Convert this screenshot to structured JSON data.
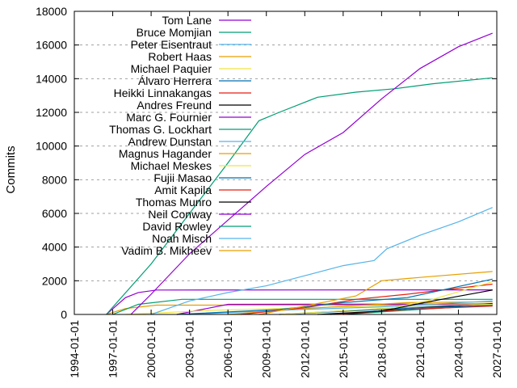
{
  "chart_data": {
    "type": "line",
    "title": "",
    "xlabel": "",
    "ylabel": "Commits",
    "ylim": [
      0,
      18000
    ],
    "xlim": [
      "1994-01-01",
      "2027-01-01"
    ],
    "yticks": [
      0,
      2000,
      4000,
      6000,
      8000,
      10000,
      12000,
      14000,
      16000,
      18000
    ],
    "xticks": [
      "1994-01-01",
      "1997-01-01",
      "2000-01-01",
      "2003-01-01",
      "2006-01-01",
      "2009-01-01",
      "2012-01-01",
      "2015-01-01",
      "2018-01-01",
      "2021-01-01",
      "2024-01-01",
      "2027-01-01"
    ],
    "grid": "y-dashed",
    "legend": "top-left",
    "series": [
      {
        "name": "Tom Lane",
        "color": "#9400d3",
        "points": [
          [
            "1998-06-01",
            0
          ],
          [
            "2000-01-01",
            1200
          ],
          [
            "2003-01-01",
            3600
          ],
          [
            "2006-01-01",
            5600
          ],
          [
            "2009-01-01",
            7600
          ],
          [
            "2012-01-01",
            9500
          ],
          [
            "2015-01-01",
            10800
          ],
          [
            "2018-01-01",
            12800
          ],
          [
            "2021-01-01",
            14600
          ],
          [
            "2024-01-01",
            15900
          ],
          [
            "2026-09-01",
            16700
          ]
        ]
      },
      {
        "name": "Bruce Momjian",
        "color": "#009e73",
        "points": [
          [
            "1996-07-01",
            0
          ],
          [
            "2000-01-01",
            3000
          ],
          [
            "2003-01-01",
            6000
          ],
          [
            "2006-01-01",
            9000
          ],
          [
            "2008-06-01",
            11500
          ],
          [
            "2010-01-01",
            12000
          ],
          [
            "2013-01-01",
            12900
          ],
          [
            "2016-01-01",
            13200
          ],
          [
            "2019-01-01",
            13400
          ],
          [
            "2022-01-01",
            13700
          ],
          [
            "2026-09-01",
            14050
          ]
        ]
      },
      {
        "name": "Peter Eisentraut",
        "color": "#56b4e9",
        "points": [
          [
            "2000-01-01",
            0
          ],
          [
            "2003-01-01",
            800
          ],
          [
            "2006-01-01",
            1300
          ],
          [
            "2009-01-01",
            1700
          ],
          [
            "2012-01-01",
            2300
          ],
          [
            "2015-01-01",
            2900
          ],
          [
            "2017-06-01",
            3200
          ],
          [
            "2018-06-01",
            3900
          ],
          [
            "2021-01-01",
            4700
          ],
          [
            "2024-01-01",
            5500
          ],
          [
            "2026-09-01",
            6350
          ]
        ]
      },
      {
        "name": "Robert Haas",
        "color": "#e69f00",
        "points": [
          [
            "2008-06-01",
            0
          ],
          [
            "2012-01-01",
            500
          ],
          [
            "2016-01-01",
            1100
          ],
          [
            "2018-01-01",
            2000
          ],
          [
            "2021-01-01",
            2200
          ],
          [
            "2026-09-01",
            2550
          ]
        ]
      },
      {
        "name": "Michael Paquier",
        "color": "#f0e442",
        "points": [
          [
            "2010-01-01",
            0
          ],
          [
            "2019-01-01",
            400
          ],
          [
            "2022-01-01",
            900
          ],
          [
            "2026-09-01",
            1950
          ]
        ]
      },
      {
        "name": "Álvaro Herrera",
        "color": "#0072b2",
        "points": [
          [
            "2002-01-01",
            0
          ],
          [
            "2010-01-01",
            300
          ],
          [
            "2015-01-01",
            700
          ],
          [
            "2020-01-01",
            1000
          ],
          [
            "2026-09-01",
            2100
          ]
        ]
      },
      {
        "name": "Heikki Linnakangas",
        "color": "#e51e10",
        "points": [
          [
            "2007-01-01",
            0
          ],
          [
            "2012-01-01",
            400
          ],
          [
            "2016-01-01",
            900
          ],
          [
            "2020-01-01",
            1200
          ],
          [
            "2026-09-01",
            1800
          ]
        ]
      },
      {
        "name": "Andres Freund",
        "color": "#000000",
        "points": [
          [
            "2013-01-01",
            0
          ],
          [
            "2018-01-01",
            200
          ],
          [
            "2022-01-01",
            800
          ],
          [
            "2026-09-01",
            1450
          ]
        ]
      },
      {
        "name": "Marc G. Fournier",
        "color": "#9400d3",
        "points": [
          [
            "1996-07-01",
            0
          ],
          [
            "1998-01-01",
            1000
          ],
          [
            "1999-01-01",
            1300
          ],
          [
            "2000-06-01",
            1450
          ],
          [
            "2026-09-01",
            1460
          ]
        ]
      },
      {
        "name": "Thomas G. Lockhart",
        "color": "#009e73",
        "points": [
          [
            "1997-01-01",
            0
          ],
          [
            "1999-01-01",
            600
          ],
          [
            "2002-06-01",
            900
          ],
          [
            "2026-09-01",
            900
          ]
        ]
      },
      {
        "name": "Andrew Dunstan",
        "color": "#56b4e9",
        "points": [
          [
            "2003-01-01",
            0
          ],
          [
            "2010-01-01",
            250
          ],
          [
            "2018-01-01",
            450
          ],
          [
            "2026-09-01",
            800
          ]
        ]
      },
      {
        "name": "Magnus Hagander",
        "color": "#e69f00",
        "points": [
          [
            "2006-01-01",
            0
          ],
          [
            "2012-01-01",
            350
          ],
          [
            "2020-01-01",
            700
          ],
          [
            "2026-09-01",
            750
          ]
        ]
      },
      {
        "name": "Michael Meskes",
        "color": "#f0e442",
        "points": [
          [
            "1998-01-01",
            0
          ],
          [
            "2005-01-01",
            250
          ],
          [
            "2015-01-01",
            450
          ],
          [
            "2026-09-01",
            600
          ]
        ]
      },
      {
        "name": "Fujii Masao",
        "color": "#0072b2",
        "points": [
          [
            "2010-01-01",
            0
          ],
          [
            "2018-01-01",
            300
          ],
          [
            "2026-09-01",
            550
          ]
        ]
      },
      {
        "name": "Amit Kapila",
        "color": "#e51e10",
        "points": [
          [
            "2014-01-01",
            0
          ],
          [
            "2020-01-01",
            300
          ],
          [
            "2026-09-01",
            500
          ]
        ]
      },
      {
        "name": "Thomas Munro",
        "color": "#000000",
        "points": [
          [
            "2015-01-01",
            0
          ],
          [
            "2020-01-01",
            350
          ],
          [
            "2026-09-01",
            650
          ]
        ]
      },
      {
        "name": "Neil Conway",
        "color": "#9400d3",
        "points": [
          [
            "2002-01-01",
            0
          ],
          [
            "2006-01-01",
            600
          ],
          [
            "2026-09-01",
            620
          ]
        ]
      },
      {
        "name": "David Rowley",
        "color": "#009e73",
        "points": [
          [
            "2015-01-01",
            0
          ],
          [
            "2020-01-01",
            250
          ],
          [
            "2026-09-01",
            560
          ]
        ]
      },
      {
        "name": "Noah Misch",
        "color": "#56b4e9",
        "points": [
          [
            "2010-01-01",
            0
          ],
          [
            "2018-01-01",
            350
          ],
          [
            "2026-09-01",
            620
          ]
        ]
      },
      {
        "name": "Vadim B. Mikheev",
        "color": "#e69f00",
        "points": [
          [
            "1996-07-01",
            0
          ],
          [
            "1998-01-01",
            350
          ],
          [
            "2000-06-01",
            550
          ],
          [
            "2026-09-01",
            560
          ]
        ]
      }
    ]
  }
}
